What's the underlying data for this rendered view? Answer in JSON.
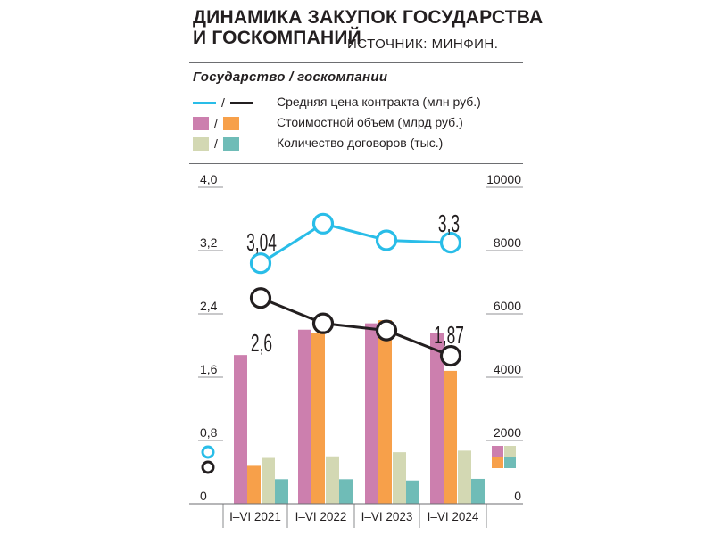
{
  "header": {
    "title_line1": "ДИНАМИКА ЗАКУПОК ГОСУДАРСТВА",
    "title_line2": "И ГОСКОМПАНИЙ",
    "source": "ИСТОЧНИК: МИНФИН.",
    "subtitle": "Государство / госкомпании"
  },
  "legend": [
    {
      "label": "Средняя цена контракта (млн руб.)",
      "kind": "line",
      "colors": [
        "#29bde8",
        "#231f20"
      ]
    },
    {
      "label": "Стоимостной объем (млрд руб.)",
      "kind": "box",
      "colors": [
        "#cc7fae",
        "#f7a04a"
      ]
    },
    {
      "label": "Количество договоров (тыс.)",
      "kind": "box",
      "colors": [
        "#d3d8b3",
        "#6fbcb7"
      ]
    }
  ],
  "colors": {
    "gov_line": "#29bde8",
    "comp_line": "#231f20",
    "gov_volume": "#cc7fae",
    "comp_volume": "#f7a04a",
    "gov_count": "#d3d8b3",
    "comp_count": "#6fbcb7",
    "grid": "#6d6e71",
    "text": "#231f20"
  },
  "chart_data": {
    "type": "bar",
    "categories": [
      "I–VI 2021",
      "I–VI 2022",
      "I–VI 2023",
      "I–VI 2024"
    ],
    "left_axis": {
      "ylim": [
        0,
        4.0
      ],
      "ticks": [
        "0",
        "0,8",
        "1,6",
        "2,4",
        "3,2",
        "4,0"
      ]
    },
    "right_axis": {
      "ylim": [
        0,
        10000
      ],
      "ticks": [
        "0",
        "2000",
        "4000",
        "6000",
        "8000",
        "10000"
      ]
    },
    "bar_series": [
      {
        "name": "Стоимостной объем — государство",
        "axis": "right",
        "values": [
          4700,
          5500,
          5700,
          5400
        ]
      },
      {
        "name": "Стоимостной объем — госкомпании",
        "axis": "right",
        "values": [
          1200,
          5400,
          5800,
          4200
        ]
      },
      {
        "name": "Количество договоров — государство",
        "axis": "right",
        "values": [
          1450,
          1500,
          1630,
          1680
        ]
      },
      {
        "name": "Количество договоров — госкомпании",
        "axis": "right",
        "values": [
          780,
          780,
          740,
          790
        ]
      }
    ],
    "line_series": [
      {
        "name": "Средняя цена контракта — государство",
        "axis": "left",
        "values": [
          3.04,
          3.54,
          3.33,
          3.3
        ]
      },
      {
        "name": "Средняя цена контракта — госкомпании",
        "axis": "left",
        "values": [
          2.6,
          2.28,
          2.19,
          1.87
        ]
      }
    ],
    "data_labels": [
      {
        "series": 0,
        "index": 0,
        "text": "3,04"
      },
      {
        "series": 0,
        "index": 3,
        "text": "3,3"
      },
      {
        "series": 1,
        "index": 0,
        "text": "2,6"
      },
      {
        "series": 1,
        "index": 3,
        "text": "1,87"
      }
    ],
    "grid": false,
    "legend_position": "top"
  }
}
